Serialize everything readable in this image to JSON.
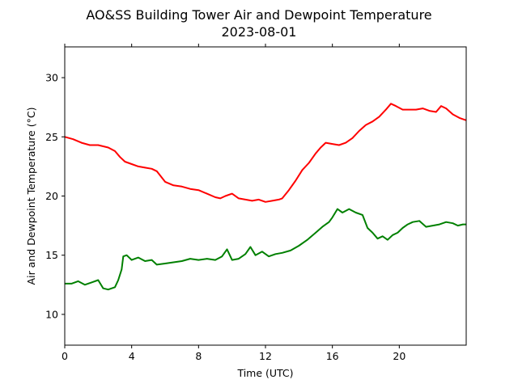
{
  "chart_data": {
    "type": "line",
    "title": "AO&SS Building Tower Air and Dewpoint Temperature",
    "subtitle": "2023-08-01",
    "xlabel": "Time (UTC)",
    "ylabel": "Air and Dewpoint Temperature (°C)",
    "xlim": [
      0,
      24
    ],
    "ylim": [
      7.4,
      32.6
    ],
    "xticks": [
      0,
      4,
      8,
      12,
      16,
      20
    ],
    "yticks": [
      10,
      15,
      20,
      25,
      30
    ],
    "grid": false,
    "legend": "none",
    "series": [
      {
        "color": "#ff0000",
        "x": [
          0,
          0.5,
          1,
          1.5,
          2,
          2.3,
          2.6,
          3,
          3.3,
          3.6,
          4,
          4.4,
          4.8,
          5.2,
          5.5,
          6,
          6.5,
          7,
          7.5,
          8,
          8.5,
          9,
          9.3,
          9.6,
          10,
          10.4,
          10.8,
          11.2,
          11.6,
          12,
          12.4,
          12.8,
          13,
          13.4,
          13.8,
          14.2,
          14.6,
          15,
          15.3,
          15.6,
          16,
          16.4,
          16.8,
          17.2,
          17.6,
          18,
          18.4,
          18.8,
          19.2,
          19.5,
          19.8,
          20.2,
          20.6,
          21,
          21.4,
          21.8,
          22.2,
          22.5,
          22.8,
          23.2,
          23.6,
          24
        ],
        "y": [
          25.0,
          24.8,
          24.5,
          24.3,
          24.3,
          24.2,
          24.1,
          23.8,
          23.3,
          22.9,
          22.7,
          22.5,
          22.4,
          22.3,
          22.1,
          21.2,
          20.9,
          20.8,
          20.6,
          20.5,
          20.2,
          19.9,
          19.8,
          20.0,
          20.2,
          19.8,
          19.7,
          19.6,
          19.7,
          19.5,
          19.6,
          19.7,
          19.8,
          20.5,
          21.3,
          22.2,
          22.8,
          23.6,
          24.1,
          24.5,
          24.4,
          24.3,
          24.5,
          24.9,
          25.5,
          26.0,
          26.3,
          26.7,
          27.3,
          27.8,
          27.6,
          27.3,
          27.3,
          27.3,
          27.4,
          27.2,
          27.1,
          27.6,
          27.4,
          26.9,
          26.6,
          26.4
        ]
      },
      {
        "color": "#008000",
        "x": [
          0,
          0.4,
          0.8,
          1.2,
          1.6,
          2,
          2.3,
          2.6,
          3,
          3.2,
          3.4,
          3.5,
          3.7,
          4,
          4.4,
          4.8,
          5.2,
          5.5,
          6,
          6.5,
          7,
          7.5,
          8,
          8.5,
          9,
          9.4,
          9.7,
          10,
          10.4,
          10.8,
          11.1,
          11.4,
          11.8,
          12.2,
          12.6,
          13,
          13.5,
          14,
          14.5,
          15,
          15.4,
          15.8,
          16,
          16.3,
          16.6,
          17,
          17.4,
          17.8,
          18.1,
          18.4,
          18.7,
          19,
          19.3,
          19.6,
          19.9,
          20.2,
          20.5,
          20.8,
          21.2,
          21.6,
          22,
          22.4,
          22.8,
          23.2,
          23.5,
          23.8,
          24
        ],
        "y": [
          12.6,
          12.6,
          12.8,
          12.5,
          12.7,
          12.9,
          12.2,
          12.1,
          12.3,
          12.9,
          13.8,
          14.9,
          15.0,
          14.6,
          14.8,
          14.5,
          14.6,
          14.2,
          14.3,
          14.4,
          14.5,
          14.7,
          14.6,
          14.7,
          14.6,
          14.9,
          15.5,
          14.6,
          14.7,
          15.1,
          15.7,
          15.0,
          15.3,
          14.9,
          15.1,
          15.2,
          15.4,
          15.8,
          16.3,
          16.9,
          17.4,
          17.8,
          18.2,
          18.9,
          18.6,
          18.9,
          18.6,
          18.4,
          17.3,
          16.9,
          16.4,
          16.6,
          16.3,
          16.7,
          16.9,
          17.3,
          17.6,
          17.8,
          17.9,
          17.4,
          17.5,
          17.6,
          17.8,
          17.7,
          17.5,
          17.6,
          17.6
        ]
      }
    ]
  }
}
